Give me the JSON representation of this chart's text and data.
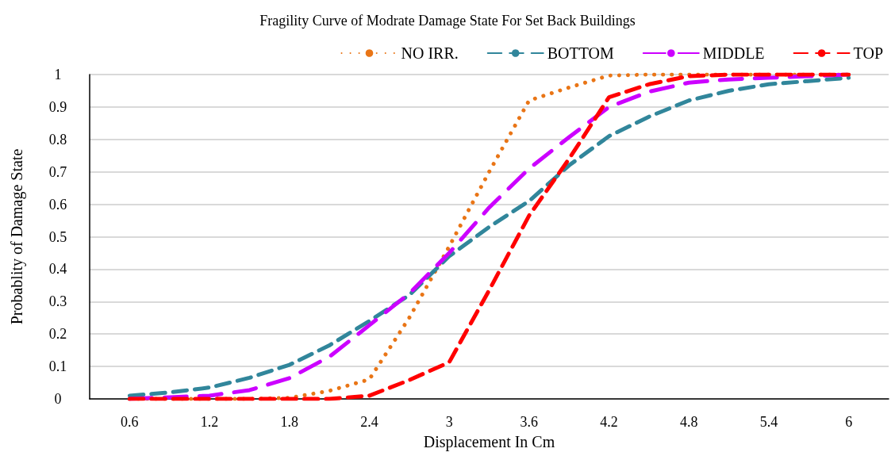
{
  "chart_data": {
    "type": "line",
    "title": "Fragility Curve of Modrate Damage State For Set Back Buildings",
    "xlabel": "Displacement In Cm",
    "ylabel": "Probablity of Damage State",
    "x": [
      0.6,
      0.9,
      1.2,
      1.5,
      1.8,
      2.1,
      2.4,
      2.7,
      3.0,
      3.3,
      3.6,
      3.9,
      4.2,
      4.5,
      4.8,
      5.1,
      5.4,
      5.7,
      6.0
    ],
    "series": [
      {
        "name": "NO IRR.",
        "color": "#e97516",
        "line_style": "dotted",
        "values": [
          0,
          0,
          0,
          0,
          0.003,
          0.025,
          0.06,
          0.25,
          0.47,
          0.7,
          0.92,
          0.96,
          0.997,
          1,
          1,
          1,
          1,
          1,
          1
        ]
      },
      {
        "name": "BOTTOM",
        "color": "#31869b",
        "line_style": "dashed",
        "values": [
          0.01,
          0.02,
          0.035,
          0.065,
          0.105,
          0.165,
          0.24,
          0.32,
          0.44,
          0.53,
          0.61,
          0.72,
          0.81,
          0.87,
          0.92,
          0.95,
          0.97,
          0.98,
          0.99
        ]
      },
      {
        "name": "MIDDLE",
        "color": "#cc00ff",
        "line_style": "dashed",
        "values": [
          0,
          0.005,
          0.01,
          0.027,
          0.064,
          0.13,
          0.227,
          0.325,
          0.45,
          0.59,
          0.71,
          0.807,
          0.9,
          0.947,
          0.975,
          0.985,
          0.99,
          0.995,
          1
        ]
      },
      {
        "name": "TOP",
        "color": "#ff0000",
        "line_style": "dashed",
        "values": [
          0,
          0,
          0,
          0,
          0,
          0,
          0.01,
          0.058,
          0.113,
          0.335,
          0.565,
          0.74,
          0.93,
          0.97,
          0.995,
          1,
          1,
          1,
          1
        ]
      }
    ],
    "xlim": [
      0.3,
      6.3
    ],
    "xticks": [
      0.6,
      1.2,
      1.8,
      2.4,
      3,
      3.6,
      4.2,
      4.8,
      5.4,
      6
    ],
    "ylim": [
      0,
      1
    ],
    "yticks": [
      0,
      0.1,
      0.2,
      0.3,
      0.4,
      0.5,
      0.6,
      0.7,
      0.8,
      0.9,
      1
    ],
    "grid": "y",
    "legend": "top right",
    "marker": "none"
  }
}
